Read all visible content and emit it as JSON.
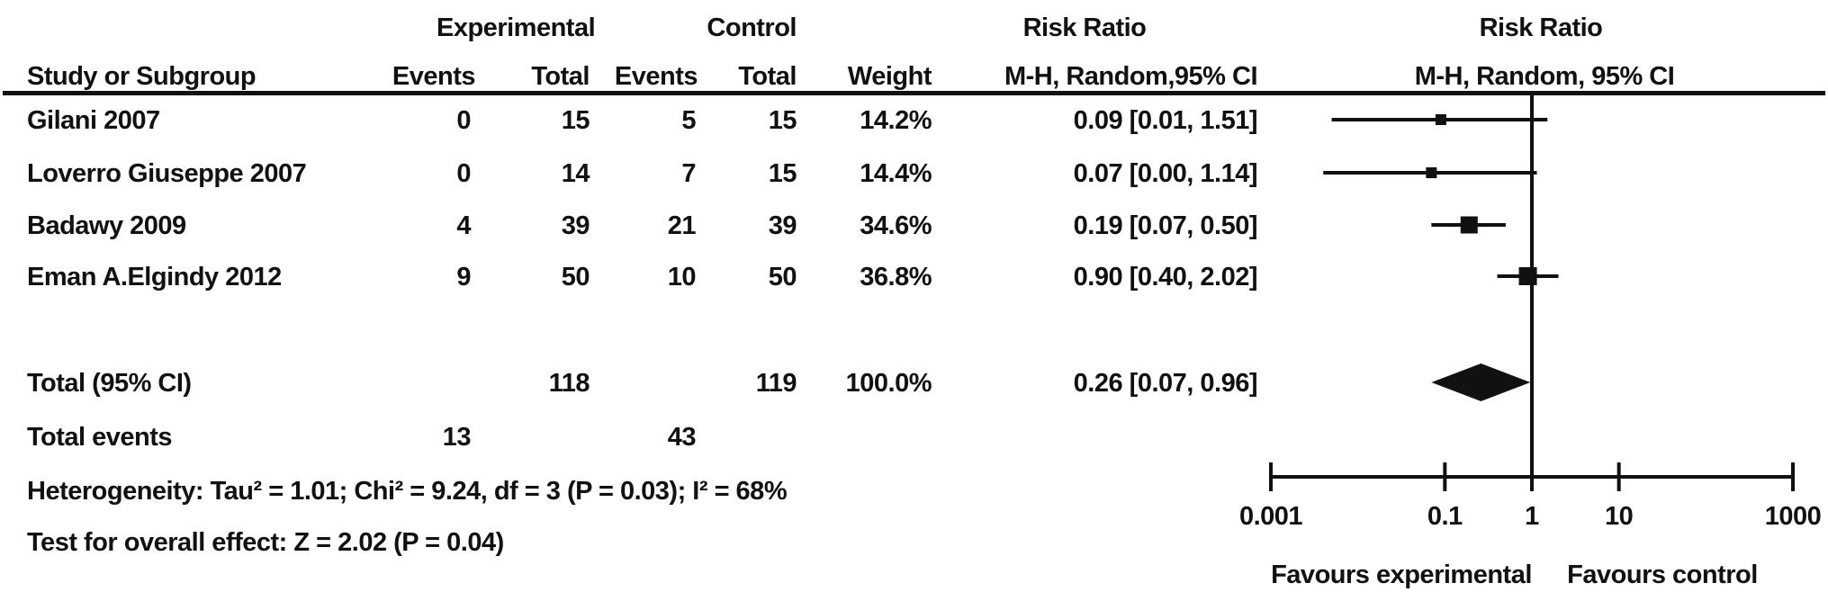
{
  "headers": {
    "group1": "Experimental",
    "group2": "Control",
    "risk_ratio_left": "Risk Ratio",
    "risk_ratio_right": "Risk Ratio",
    "study": "Study or Subgroup",
    "events1": "Events",
    "total1": "Total",
    "events2": "Events",
    "total2": "Total",
    "weight": "Weight",
    "method_left": "M-H, Random,95% CI",
    "method_right": "M-H, Random, 95% CI"
  },
  "chart_data": {
    "type": "forest",
    "effect_measure": "Risk Ratio",
    "model": "Mantel-Haenszel Random effects, 95% CI",
    "x_scale": "log",
    "x_range": [
      0.001,
      1000
    ],
    "x_ticks": [
      0.001,
      0.1,
      1,
      10,
      1000
    ],
    "x_tick_labels": [
      "0.001",
      "0.1",
      "1",
      "10",
      "1000"
    ],
    "null_line": 1,
    "studies": [
      {
        "label": "Gilani 2007",
        "exp_events": "0",
        "exp_total": "15",
        "ctrl_events": "5",
        "ctrl_total": "15",
        "weight": "14.2%",
        "weight_value": 14.2,
        "ci_text": "0.09 [0.01, 1.51]",
        "rr": 0.09,
        "ci_low": 0.01,
        "ci_high": 1.51,
        "plot_low": 0.005,
        "marker_size": 12
      },
      {
        "label": "Loverro  Giuseppe 2007",
        "exp_events": "0",
        "exp_total": "14",
        "ctrl_events": "7",
        "ctrl_total": "15",
        "weight": "14.4%",
        "weight_value": 14.4,
        "ci_text": "0.07 [0.00, 1.14]",
        "rr": 0.07,
        "ci_low": 0.004,
        "ci_high": 1.14,
        "plot_low": 0.004,
        "marker_size": 12
      },
      {
        "label": "Badawy 2009",
        "exp_events": "4",
        "exp_total": "39",
        "ctrl_events": "21",
        "ctrl_total": "39",
        "weight": "34.6%",
        "weight_value": 34.6,
        "ci_text": "0.19 [0.07, 0.50]",
        "rr": 0.19,
        "ci_low": 0.07,
        "ci_high": 0.5,
        "plot_low": 0.07,
        "marker_size": 19
      },
      {
        "label": "Eman A.Elgindy 2012",
        "exp_events": "9",
        "exp_total": "50",
        "ctrl_events": "10",
        "ctrl_total": "50",
        "weight": "36.8%",
        "weight_value": 36.8,
        "ci_text": "0.90 [0.40, 2.02]",
        "rr": 0.9,
        "ci_low": 0.4,
        "ci_high": 2.02,
        "plot_low": 0.4,
        "marker_size": 20
      }
    ],
    "total": {
      "label": "Total (95% CI)",
      "exp_total": "118",
      "ctrl_total": "119",
      "weight": "100.0%",
      "ci_text": "0.26 [0.07, 0.96]",
      "rr": 0.26,
      "ci_low": 0.07,
      "ci_high": 0.96
    },
    "total_events": {
      "label": "Total events",
      "exp": "13",
      "ctrl": "43"
    },
    "heterogeneity": "Heterogeneity: Tau² = 1.01; Chi² = 9.24, df = 3 (P = 0.03); I² = 68%",
    "overall_effect": "Test for overall effect: Z = 2.02 (P = 0.04)",
    "favours_left": "Favours experimental",
    "favours_right": "Favours control"
  }
}
